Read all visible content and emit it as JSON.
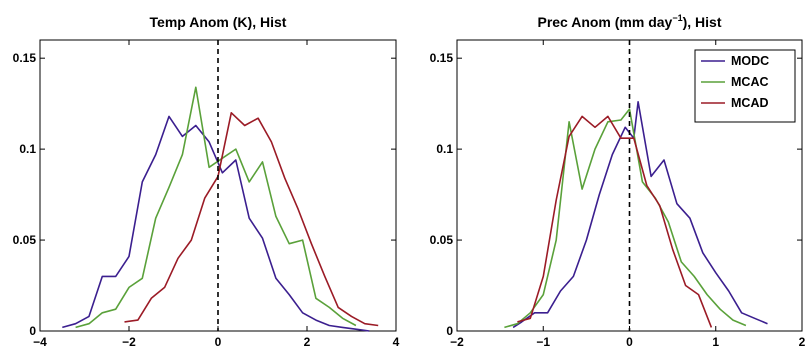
{
  "colors": {
    "MODC": "#3b1f8f",
    "MCAC": "#5aa13a",
    "MCAD": "#9b1b26"
  },
  "chart_data": [
    {
      "type": "line",
      "title": "Temp Anom (K), Hist",
      "xlim": [
        -4,
        4
      ],
      "ylim": [
        0,
        0.16
      ],
      "x_ticks": [
        "−4",
        "−2",
        "0",
        "2",
        "4"
      ],
      "y_ticks": [
        "0",
        "0.05",
        "0.1",
        "0.15"
      ],
      "vline_x": 0,
      "legend": false,
      "series": [
        {
          "name": "MODC",
          "x": [
            -3.5,
            -3.2,
            -2.9,
            -2.6,
            -2.3,
            -2.0,
            -1.7,
            -1.4,
            -1.1,
            -0.8,
            -0.5,
            -0.2,
            0.1,
            0.4,
            0.7,
            1.0,
            1.3,
            1.6,
            1.9,
            2.2,
            2.5,
            2.8,
            3.1,
            3.4
          ],
          "y": [
            0.002,
            0.004,
            0.008,
            0.03,
            0.03,
            0.041,
            0.082,
            0.097,
            0.118,
            0.107,
            0.113,
            0.104,
            0.087,
            0.094,
            0.062,
            0.051,
            0.029,
            0.02,
            0.01,
            0.006,
            0.003,
            0.002,
            0.001,
            0.0
          ]
        },
        {
          "name": "MCAC",
          "x": [
            -3.2,
            -2.9,
            -2.6,
            -2.3,
            -2.0,
            -1.7,
            -1.4,
            -1.1,
            -0.8,
            -0.5,
            -0.2,
            0.1,
            0.4,
            0.7,
            1.0,
            1.3,
            1.6,
            1.9,
            2.2,
            2.5,
            2.8,
            3.1
          ],
          "y": [
            0.002,
            0.004,
            0.01,
            0.012,
            0.024,
            0.029,
            0.062,
            0.079,
            0.097,
            0.134,
            0.09,
            0.095,
            0.1,
            0.082,
            0.093,
            0.063,
            0.048,
            0.05,
            0.018,
            0.013,
            0.007,
            0.003
          ]
        },
        {
          "name": "MCAD",
          "x": [
            -2.1,
            -1.8,
            -1.5,
            -1.2,
            -0.9,
            -0.6,
            -0.3,
            0.0,
            0.3,
            0.6,
            0.9,
            1.2,
            1.5,
            1.8,
            2.1,
            2.4,
            2.7,
            3.0,
            3.3,
            3.6
          ],
          "y": [
            0.005,
            0.006,
            0.018,
            0.024,
            0.04,
            0.05,
            0.073,
            0.085,
            0.12,
            0.113,
            0.117,
            0.104,
            0.084,
            0.067,
            0.048,
            0.03,
            0.013,
            0.008,
            0.004,
            0.003
          ]
        }
      ]
    },
    {
      "type": "line",
      "title": "Prec Anom (mm day",
      "title_sup": "−1",
      "title_tail": "), Hist",
      "xlim": [
        -2,
        2
      ],
      "ylim": [
        0,
        0.16
      ],
      "x_ticks": [
        "−2",
        "−1",
        "0",
        "1",
        "2"
      ],
      "y_ticks": [
        "0",
        "0.05",
        "0.1",
        "0.15"
      ],
      "vline_x": 0,
      "legend": true,
      "legend_position": "top-right",
      "series": [
        {
          "name": "MODC",
          "x": [
            -1.35,
            -1.25,
            -1.1,
            -0.95,
            -0.8,
            -0.65,
            -0.5,
            -0.35,
            -0.2,
            -0.05,
            0.05,
            0.1,
            0.25,
            0.4,
            0.55,
            0.7,
            0.85,
            1.0,
            1.15,
            1.3,
            1.45,
            1.6
          ],
          "y": [
            0.002,
            0.005,
            0.01,
            0.01,
            0.022,
            0.03,
            0.05,
            0.075,
            0.097,
            0.112,
            0.106,
            0.126,
            0.085,
            0.094,
            0.07,
            0.062,
            0.043,
            0.032,
            0.022,
            0.01,
            0.007,
            0.004
          ]
        },
        {
          "name": "MCAC",
          "x": [
            -1.45,
            -1.3,
            -1.15,
            -1.0,
            -0.85,
            -0.7,
            -0.55,
            -0.4,
            -0.25,
            -0.1,
            0.0,
            0.15,
            0.3,
            0.45,
            0.6,
            0.75,
            0.9,
            1.05,
            1.2,
            1.35
          ],
          "y": [
            0.002,
            0.004,
            0.01,
            0.02,
            0.05,
            0.115,
            0.078,
            0.1,
            0.115,
            0.116,
            0.122,
            0.082,
            0.073,
            0.06,
            0.038,
            0.03,
            0.02,
            0.012,
            0.006,
            0.003
          ]
        },
        {
          "name": "MCAD",
          "x": [
            -1.3,
            -1.15,
            -1.0,
            -0.85,
            -0.7,
            -0.55,
            -0.4,
            -0.25,
            -0.1,
            0.05,
            0.2,
            0.35,
            0.5,
            0.65,
            0.8,
            0.95
          ],
          "y": [
            0.005,
            0.007,
            0.03,
            0.072,
            0.107,
            0.118,
            0.112,
            0.118,
            0.106,
            0.106,
            0.08,
            0.069,
            0.045,
            0.025,
            0.02,
            0.002
          ]
        }
      ]
    }
  ]
}
